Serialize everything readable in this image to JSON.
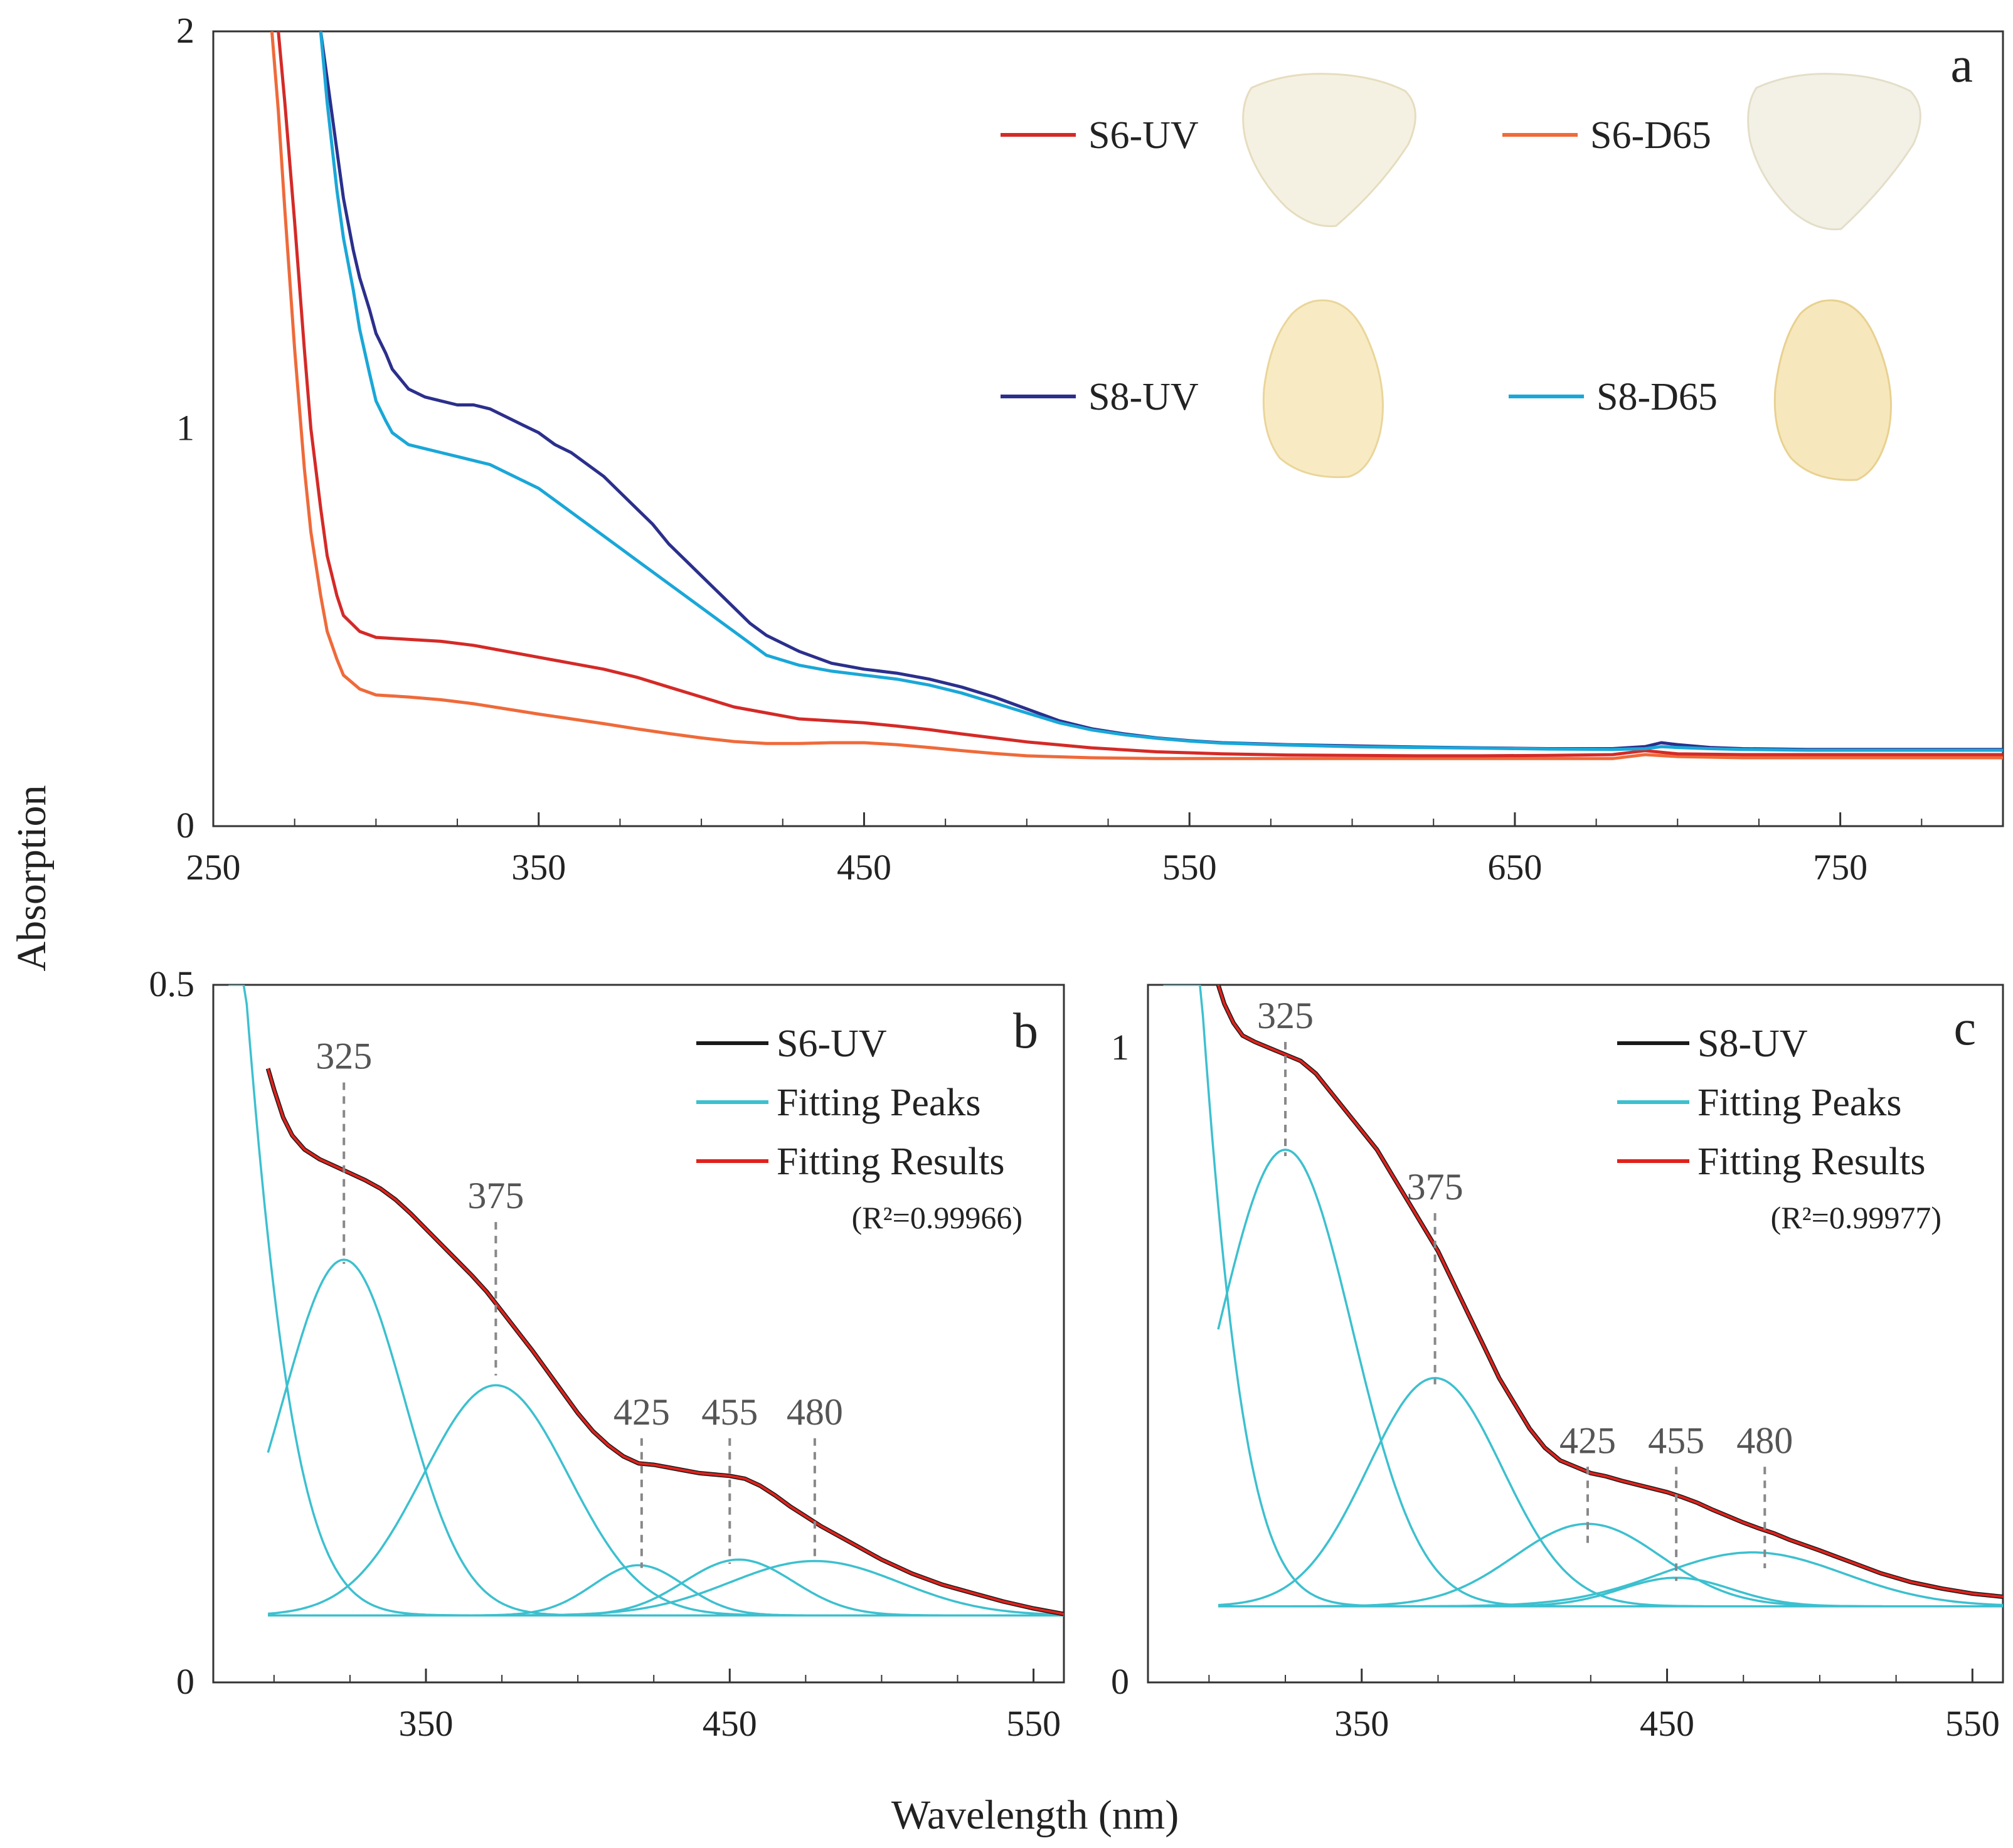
{
  "figure": {
    "ylabel": "Absorption",
    "xlabel": "Wavelength (nm)"
  },
  "colors": {
    "S6-UV": "#d42a27",
    "S6-D65": "#ef6a3a",
    "S8-UV": "#2b2f8c",
    "S8-D65": "#1aa7d8",
    "measured": "#1a1a1a",
    "fitting_peaks": "#3cc0cf",
    "fitting_results": "#e0221c",
    "peak_guide": "#888888"
  },
  "chart_data": [
    {
      "id": "a",
      "type": "line",
      "panel_letter": "a",
      "xlim": [
        250,
        800
      ],
      "ylim": [
        0,
        2
      ],
      "xticks": [
        250,
        350,
        450,
        550,
        650,
        750
      ],
      "yticks": [
        0,
        1,
        2
      ],
      "legend_position": "top-right",
      "series": [
        {
          "name": "S6-UV",
          "x": [
            270,
            272,
            275,
            278,
            280,
            283,
            285,
            288,
            290,
            295,
            300,
            310,
            320,
            330,
            340,
            350,
            360,
            370,
            380,
            390,
            400,
            410,
            420,
            430,
            440,
            450,
            460,
            470,
            480,
            490,
            500,
            520,
            540,
            560,
            580,
            600,
            620,
            640,
            660,
            680,
            685,
            690,
            695,
            700,
            720,
            740,
            760,
            780,
            800
          ],
          "y": [
            2.0,
            1.82,
            1.52,
            1.2,
            1.0,
            0.8,
            0.68,
            0.58,
            0.53,
            0.49,
            0.475,
            0.47,
            0.465,
            0.455,
            0.44,
            0.425,
            0.41,
            0.395,
            0.375,
            0.35,
            0.325,
            0.3,
            0.285,
            0.27,
            0.265,
            0.26,
            0.252,
            0.243,
            0.232,
            0.222,
            0.212,
            0.197,
            0.187,
            0.182,
            0.179,
            0.178,
            0.177,
            0.177,
            0.178,
            0.18,
            0.185,
            0.19,
            0.186,
            0.182,
            0.18,
            0.18,
            0.18,
            0.18,
            0.18
          ]
        },
        {
          "name": "S6-D65",
          "x": [
            268,
            270,
            272,
            275,
            278,
            280,
            283,
            285,
            288,
            290,
            295,
            300,
            310,
            320,
            330,
            340,
            350,
            360,
            370,
            380,
            390,
            400,
            410,
            420,
            430,
            440,
            450,
            460,
            470,
            480,
            490,
            500,
            520,
            540,
            560,
            580,
            600,
            620,
            640,
            660,
            680,
            690,
            700,
            720,
            740,
            760,
            780,
            800
          ],
          "y": [
            2.0,
            1.8,
            1.55,
            1.2,
            0.9,
            0.74,
            0.58,
            0.49,
            0.42,
            0.38,
            0.345,
            0.33,
            0.325,
            0.318,
            0.308,
            0.295,
            0.282,
            0.27,
            0.258,
            0.245,
            0.233,
            0.222,
            0.213,
            0.208,
            0.208,
            0.21,
            0.21,
            0.205,
            0.198,
            0.19,
            0.183,
            0.177,
            0.172,
            0.17,
            0.17,
            0.17,
            0.17,
            0.17,
            0.17,
            0.17,
            0.17,
            0.18,
            0.175,
            0.172,
            0.172,
            0.172,
            0.172,
            0.172
          ]
        },
        {
          "name": "S8-UV",
          "x": [
            283,
            285,
            288,
            290,
            293,
            295,
            298,
            300,
            303,
            305,
            310,
            315,
            320,
            325,
            330,
            335,
            340,
            345,
            350,
            355,
            360,
            365,
            370,
            375,
            380,
            385,
            390,
            395,
            400,
            405,
            410,
            415,
            420,
            430,
            440,
            450,
            460,
            470,
            480,
            490,
            500,
            510,
            520,
            530,
            540,
            550,
            560,
            580,
            600,
            620,
            640,
            660,
            680,
            690,
            695,
            700,
            710,
            720,
            740,
            760,
            780,
            800
          ],
          "y": [
            2.0,
            1.88,
            1.7,
            1.58,
            1.45,
            1.38,
            1.3,
            1.24,
            1.19,
            1.15,
            1.1,
            1.08,
            1.07,
            1.06,
            1.06,
            1.05,
            1.03,
            1.01,
            0.99,
            0.96,
            0.94,
            0.91,
            0.88,
            0.84,
            0.8,
            0.76,
            0.71,
            0.67,
            0.63,
            0.59,
            0.55,
            0.51,
            0.48,
            0.44,
            0.41,
            0.395,
            0.385,
            0.37,
            0.35,
            0.325,
            0.295,
            0.265,
            0.245,
            0.232,
            0.222,
            0.215,
            0.21,
            0.205,
            0.202,
            0.199,
            0.197,
            0.195,
            0.195,
            0.2,
            0.21,
            0.205,
            0.198,
            0.195,
            0.193,
            0.193,
            0.193,
            0.193
          ]
        },
        {
          "name": "S8-D65",
          "x": [
            283,
            285,
            288,
            290,
            293,
            295,
            298,
            300,
            303,
            305,
            310,
            315,
            320,
            325,
            330,
            335,
            340,
            345,
            350,
            355,
            360,
            365,
            370,
            375,
            380,
            385,
            390,
            395,
            400,
            405,
            410,
            415,
            420,
            430,
            440,
            450,
            460,
            470,
            480,
            490,
            500,
            510,
            520,
            530,
            540,
            550,
            560,
            580,
            600,
            620,
            640,
            660,
            680,
            690,
            695,
            700,
            710,
            720,
            740,
            760,
            780,
            800
          ],
          "y": [
            2.0,
            1.82,
            1.6,
            1.48,
            1.35,
            1.25,
            1.14,
            1.07,
            1.02,
            0.99,
            0.96,
            0.95,
            0.94,
            0.93,
            0.92,
            0.91,
            0.89,
            0.87,
            0.85,
            0.82,
            0.79,
            0.76,
            0.73,
            0.7,
            0.67,
            0.64,
            0.61,
            0.58,
            0.55,
            0.52,
            0.49,
            0.46,
            0.43,
            0.405,
            0.39,
            0.38,
            0.37,
            0.355,
            0.335,
            0.31,
            0.285,
            0.26,
            0.242,
            0.23,
            0.221,
            0.214,
            0.209,
            0.204,
            0.2,
            0.198,
            0.196,
            0.194,
            0.193,
            0.195,
            0.2,
            0.198,
            0.195,
            0.193,
            0.191,
            0.191,
            0.191,
            0.191
          ]
        }
      ]
    },
    {
      "id": "b",
      "type": "line",
      "panel_letter": "b",
      "xlim": [
        280,
        560
      ],
      "ylim": [
        0,
        0.5
      ],
      "xticks": [
        350,
        450,
        550
      ],
      "yticks": [
        0,
        0.5
      ],
      "legend_position": "top-right",
      "legend": [
        "S6-UV",
        "Fitting Peaks",
        "Fitting Results"
      ],
      "r2": "(R²=0.99966)",
      "peak_labels": [
        {
          "label": "325",
          "x": 323,
          "y_top": 0.43,
          "y_bottom": 0.3
        },
        {
          "label": "375",
          "x": 373,
          "y_top": 0.33,
          "y_bottom": 0.22
        },
        {
          "label": "425",
          "x": 421,
          "y_top": 0.175,
          "y_bottom": 0.082
        },
        {
          "label": "455",
          "x": 450,
          "y_top": 0.175,
          "y_bottom": 0.085
        },
        {
          "label": "480",
          "x": 478,
          "y_top": 0.175,
          "y_bottom": 0.088
        }
      ],
      "baseline": 0.048,
      "tail_peak": {
        "center": 255,
        "amplitude": 1.35,
        "sigma": 24
      },
      "peaks": [
        {
          "center": 323,
          "amplitude": 0.255,
          "sigma": 20
        },
        {
          "center": 373,
          "amplitude": 0.165,
          "sigma": 24
        },
        {
          "center": 420,
          "amplitude": 0.036,
          "sigma": 15
        },
        {
          "center": 453,
          "amplitude": 0.04,
          "sigma": 18
        },
        {
          "center": 478,
          "amplitude": 0.039,
          "sigma": 28
        }
      ],
      "series": [
        {
          "name": "S6-UV",
          "x": [
            298,
            300,
            303,
            306,
            310,
            315,
            320,
            325,
            330,
            335,
            340,
            345,
            350,
            355,
            360,
            365,
            370,
            375,
            380,
            385,
            390,
            395,
            400,
            405,
            410,
            415,
            420,
            425,
            430,
            435,
            440,
            445,
            450,
            455,
            460,
            465,
            470,
            475,
            480,
            490,
            500,
            510,
            520,
            530,
            540,
            550,
            560
          ],
          "y": [
            0.44,
            0.425,
            0.405,
            0.392,
            0.382,
            0.375,
            0.37,
            0.365,
            0.36,
            0.354,
            0.346,
            0.336,
            0.325,
            0.314,
            0.303,
            0.292,
            0.28,
            0.266,
            0.252,
            0.238,
            0.223,
            0.208,
            0.193,
            0.18,
            0.17,
            0.162,
            0.157,
            0.156,
            0.154,
            0.152,
            0.15,
            0.149,
            0.148,
            0.146,
            0.141,
            0.134,
            0.126,
            0.119,
            0.112,
            0.1,
            0.088,
            0.078,
            0.07,
            0.064,
            0.058,
            0.053,
            0.049
          ]
        }
      ]
    },
    {
      "id": "c",
      "type": "line",
      "panel_letter": "c",
      "xlim": [
        280,
        560
      ],
      "ylim": [
        0,
        1.1
      ],
      "xticks": [
        350,
        450,
        550
      ],
      "yticks": [
        0,
        1
      ],
      "legend_position": "top-right",
      "legend": [
        "S8-UV",
        "Fitting Peaks",
        "Fitting Results"
      ],
      "r2": "(R²=0.99977)",
      "peak_labels": [
        {
          "label": "325",
          "x": 325,
          "y_top": 1.01,
          "y_bottom": 0.83
        },
        {
          "label": "375",
          "x": 374,
          "y_top": 0.74,
          "y_bottom": 0.47
        },
        {
          "label": "425",
          "x": 424,
          "y_top": 0.34,
          "y_bottom": 0.22
        },
        {
          "label": "455",
          "x": 453,
          "y_top": 0.34,
          "y_bottom": 0.16
        },
        {
          "label": "480",
          "x": 482,
          "y_top": 0.34,
          "y_bottom": 0.18
        }
      ],
      "baseline": 0.12,
      "tail_peak": {
        "center": 263,
        "amplitude": 3.3,
        "sigma": 22
      },
      "peaks": [
        {
          "center": 325,
          "amplitude": 0.72,
          "sigma": 22
        },
        {
          "center": 374,
          "amplitude": 0.36,
          "sigma": 22
        },
        {
          "center": 424,
          "amplitude": 0.13,
          "sigma": 24
        },
        {
          "center": 453,
          "amplitude": 0.045,
          "sigma": 18
        },
        {
          "center": 478,
          "amplitude": 0.085,
          "sigma": 30
        }
      ],
      "series": [
        {
          "name": "S8-UV",
          "x": [
            303,
            305,
            308,
            311,
            315,
            320,
            325,
            330,
            335,
            340,
            345,
            350,
            355,
            360,
            365,
            370,
            375,
            380,
            385,
            390,
            395,
            400,
            405,
            410,
            415,
            420,
            425,
            430,
            435,
            440,
            445,
            450,
            455,
            460,
            465,
            470,
            475,
            480,
            485,
            490,
            500,
            510,
            520,
            530,
            540,
            550,
            560
          ],
          "y": [
            1.1,
            1.07,
            1.04,
            1.02,
            1.01,
            1.0,
            0.99,
            0.98,
            0.96,
            0.93,
            0.9,
            0.87,
            0.84,
            0.8,
            0.76,
            0.72,
            0.68,
            0.63,
            0.58,
            0.53,
            0.48,
            0.44,
            0.4,
            0.37,
            0.35,
            0.34,
            0.33,
            0.325,
            0.318,
            0.312,
            0.306,
            0.3,
            0.292,
            0.283,
            0.272,
            0.262,
            0.252,
            0.243,
            0.235,
            0.225,
            0.208,
            0.19,
            0.172,
            0.158,
            0.148,
            0.14,
            0.135
          ]
        }
      ]
    }
  ],
  "legend_a": [
    {
      "series": "S6-UV",
      "label": "S6-UV"
    },
    {
      "series": "S6-D65",
      "label": "S6-D65"
    },
    {
      "series": "S8-UV",
      "label": "S8-UV"
    },
    {
      "series": "S8-D65",
      "label": "S8-D65"
    }
  ],
  "legend_bc": {
    "b": {
      "measured": "S6-UV",
      "peaks": "Fitting Peaks",
      "results": "Fitting Results",
      "r2": "(R²=0.99966)"
    },
    "c": {
      "measured": "S8-UV",
      "peaks": "Fitting Peaks",
      "results": "Fitting Results",
      "r2": "(R²=0.99977)"
    }
  }
}
